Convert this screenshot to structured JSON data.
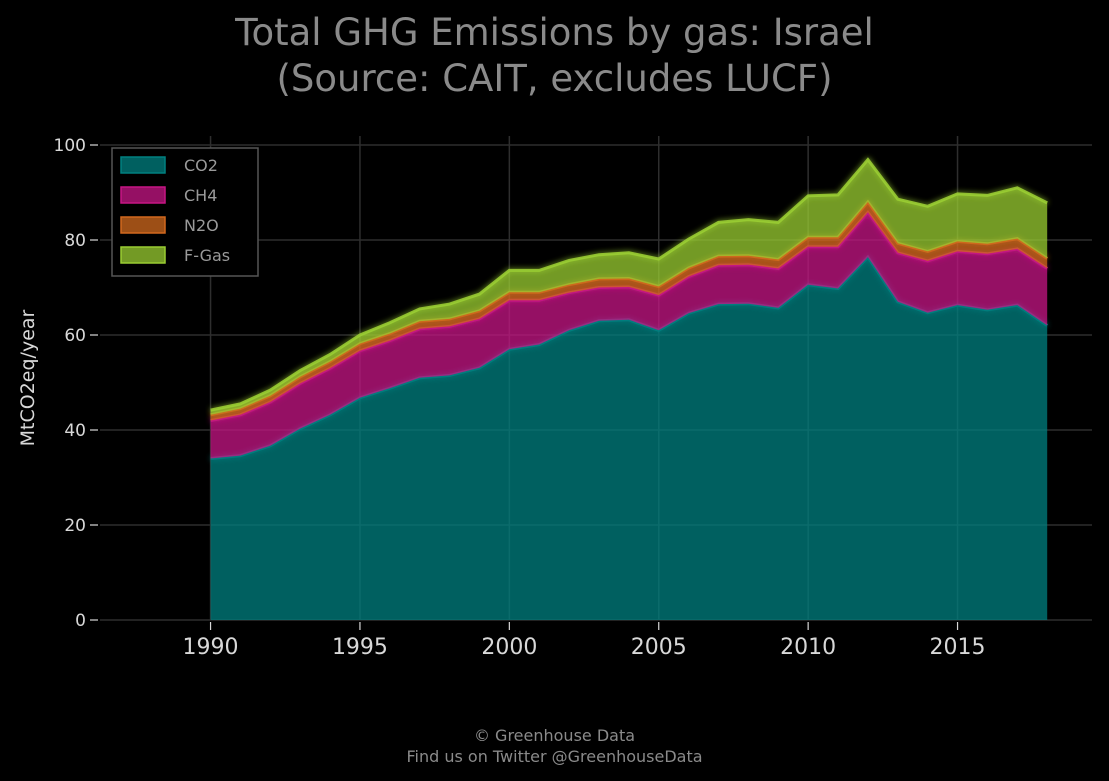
{
  "footer": {
    "line1": "© Greenhouse Data",
    "line2": "Find us on Twitter @GreenhouseData"
  },
  "chart_data": {
    "type": "area",
    "stacked": true,
    "title": "Total GHG Emissions by gas: Israel",
    "subtitle": "(Source: CAIT, excludes LUCF)",
    "xlabel": "",
    "ylabel": "MtCO2eq/year",
    "xlim": [
      1986.3,
      2019.5
    ],
    "ylim": [
      0,
      100
    ],
    "x_ticks": [
      1990,
      1995,
      2000,
      2005,
      2010,
      2015
    ],
    "y_ticks": [
      0,
      20,
      40,
      60,
      80,
      100
    ],
    "grid": true,
    "legend_position": "top-left",
    "x": [
      1990,
      1991,
      1992,
      1993,
      1994,
      1995,
      1996,
      1997,
      1998,
      1999,
      2000,
      2001,
      2002,
      2003,
      2004,
      2005,
      2006,
      2007,
      2008,
      2009,
      2010,
      2011,
      2012,
      2013,
      2014,
      2015,
      2016,
      2017,
      2018
    ],
    "series": [
      {
        "name": "CO2",
        "color": "#008080",
        "values": [
          34.0,
          34.6,
          36.7,
          40.3,
          43.2,
          46.8,
          48.8,
          51.0,
          51.5,
          53.1,
          57.0,
          58.0,
          61.0,
          63.0,
          63.2,
          61.0,
          64.6,
          66.5,
          66.6,
          65.7,
          70.6,
          69.8,
          76.4,
          67.0,
          64.7,
          66.3,
          65.3,
          66.3,
          62.0
        ]
      },
      {
        "name": "CH4",
        "color": "#c71585",
        "values": [
          8.0,
          8.6,
          9.2,
          9.5,
          9.8,
          9.9,
          10.0,
          10.3,
          10.3,
          10.3,
          10.3,
          9.3,
          7.9,
          7.0,
          6.9,
          7.4,
          7.7,
          8.2,
          8.2,
          8.3,
          8.0,
          8.8,
          9.4,
          10.3,
          10.9,
          11.3,
          11.8,
          11.8,
          12.0
        ]
      },
      {
        "name": "N2O",
        "color": "#d2691e",
        "values": [
          1.2,
          1.3,
          1.3,
          1.4,
          1.4,
          1.5,
          1.5,
          1.6,
          1.6,
          1.7,
          1.7,
          1.7,
          1.7,
          1.8,
          1.8,
          1.8,
          1.8,
          1.9,
          1.9,
          1.9,
          2.0,
          2.0,
          2.2,
          2.0,
          2.0,
          2.1,
          2.1,
          2.2,
          2.1
        ]
      },
      {
        "name": "F-Gas",
        "color": "#9acd32",
        "values": [
          1.0,
          1.0,
          1.2,
          1.3,
          1.5,
          1.8,
          2.3,
          2.6,
          3.1,
          3.5,
          4.6,
          4.6,
          5.1,
          5.1,
          5.4,
          5.8,
          6.1,
          7.1,
          7.6,
          7.8,
          8.7,
          8.9,
          8.9,
          9.3,
          9.5,
          10.0,
          10.2,
          10.7,
          11.7
        ]
      }
    ]
  }
}
